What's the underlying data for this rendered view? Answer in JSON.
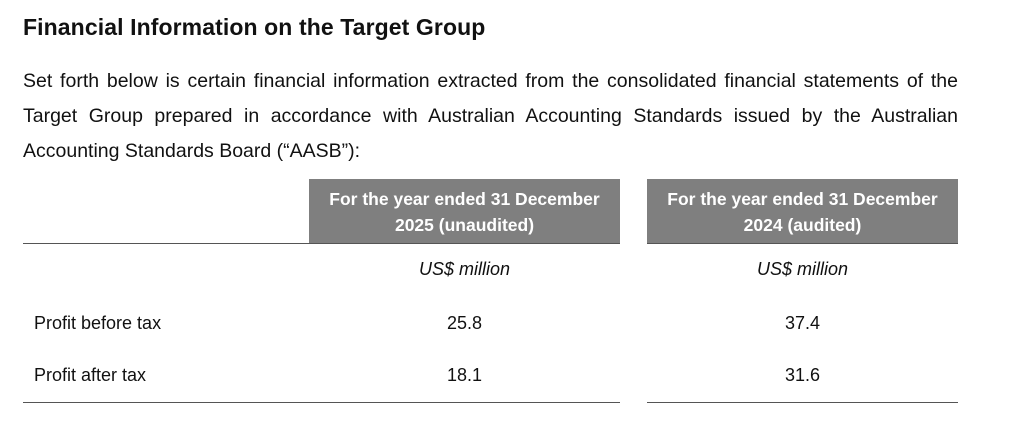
{
  "section": {
    "heading": "Financial Information on the Target Group",
    "intro": "Set forth below is certain financial information extracted from the consolidated financial statements of the Target Group prepared in accordance with Australian Accounting Standards issued by the Australian Accounting Standards Board (“AASB”):"
  },
  "table": {
    "columns": [
      {
        "header": "For the year ended 31 December 2025 (unaudited)",
        "unit": "US$ million"
      },
      {
        "header": "For the year ended 31 December 2024 (audited)",
        "unit": "US$ million"
      }
    ],
    "rows": [
      {
        "label": "Profit before tax",
        "values": [
          "25.8",
          "37.4"
        ]
      },
      {
        "label": "Profit after tax",
        "values": [
          "18.1",
          "31.6"
        ]
      }
    ],
    "header_fill_color": "#7f7f7f"
  }
}
